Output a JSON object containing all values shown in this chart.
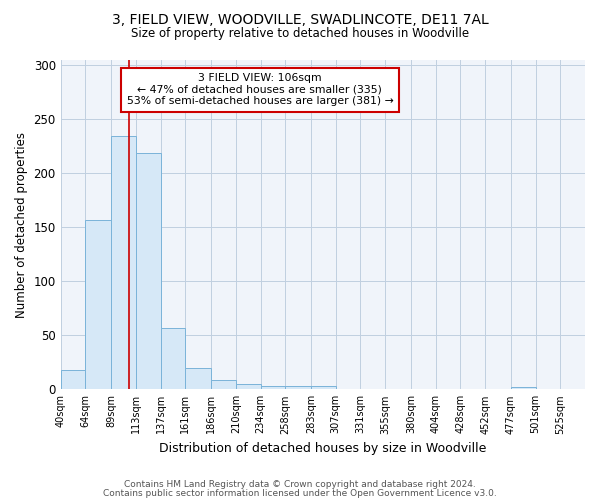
{
  "title1": "3, FIELD VIEW, WOODVILLE, SWADLINCOTE, DE11 7AL",
  "title2": "Size of property relative to detached houses in Woodville",
  "xlabel": "Distribution of detached houses by size in Woodville",
  "ylabel": "Number of detached properties",
  "bin_labels": [
    "40sqm",
    "64sqm",
    "89sqm",
    "113sqm",
    "137sqm",
    "161sqm",
    "186sqm",
    "210sqm",
    "234sqm",
    "258sqm",
    "283sqm",
    "307sqm",
    "331sqm",
    "355sqm",
    "380sqm",
    "404sqm",
    "428sqm",
    "452sqm",
    "477sqm",
    "501sqm",
    "525sqm"
  ],
  "bar_values": [
    18,
    157,
    235,
    219,
    57,
    20,
    9,
    5,
    3,
    3,
    3,
    0,
    0,
    0,
    0,
    0,
    0,
    0,
    2,
    0,
    0
  ],
  "bar_color": "#d6e8f7",
  "bar_edgecolor": "#7ab3d9",
  "vline_x": 106,
  "vline_color": "#cc0000",
  "annotation_text": "3 FIELD VIEW: 106sqm\n← 47% of detached houses are smaller (335)\n53% of semi-detached houses are larger (381) →",
  "annotation_box_edgecolor": "#cc0000",
  "ylim": [
    0,
    305
  ],
  "yticks": [
    0,
    50,
    100,
    150,
    200,
    250,
    300
  ],
  "footer1": "Contains HM Land Registry data © Crown copyright and database right 2024.",
  "footer2": "Contains public sector information licensed under the Open Government Licence v3.0.",
  "background_color": "#f0f4fa"
}
